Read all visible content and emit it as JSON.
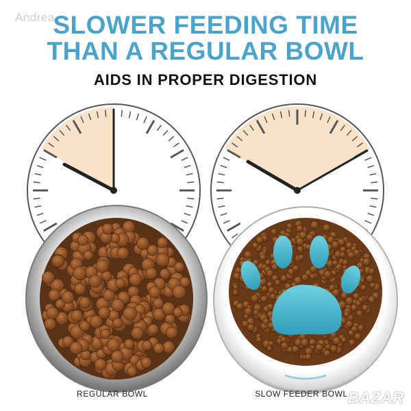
{
  "watermark_top": "Andrea",
  "headline": {
    "line1": "SLOWER FEEDING TIME",
    "line2": "THAN A REGULAR BOWL"
  },
  "subheading": "AIDS IN PROPER DIGESTION",
  "captions": {
    "left": "REGULAR BOWL",
    "right": "SLOW FEEDER BOWL"
  },
  "watermark_brand": "BAZAR",
  "colors": {
    "headline": "#4aa3c8",
    "clock_fill": "#f8e2c8",
    "paw": "#3fb7cf",
    "kibble": "#8a4f25"
  }
}
